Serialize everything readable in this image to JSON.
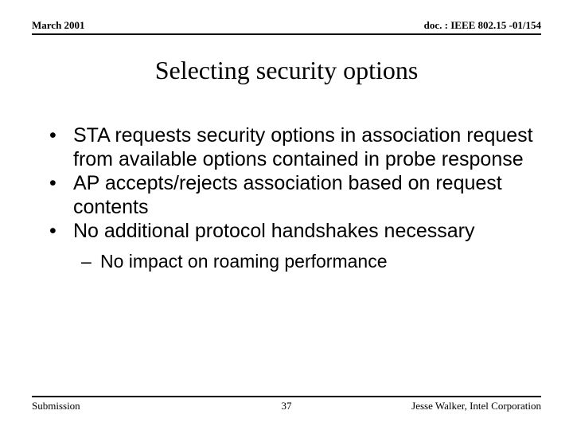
{
  "header": {
    "left": "March 2001",
    "right": "doc. : IEEE 802.15 -01/154"
  },
  "title": "Selecting security options",
  "bullets": [
    "STA requests security options in association request from available options contained in probe response",
    "AP accepts/rejects association based on request contents",
    "No additional protocol handshakes necessary"
  ],
  "subBullet": "No impact on roaming performance",
  "footer": {
    "left": "Submission",
    "page": "37",
    "right": "Jesse Walker, Intel Corporation"
  },
  "style": {
    "background": "#ffffff",
    "text_color": "#000000",
    "title_fontsize": 32,
    "body_fontsize": 25,
    "sub_fontsize": 23,
    "header_fontsize": 13,
    "footer_fontsize": 13,
    "rule_color": "#000000"
  }
}
